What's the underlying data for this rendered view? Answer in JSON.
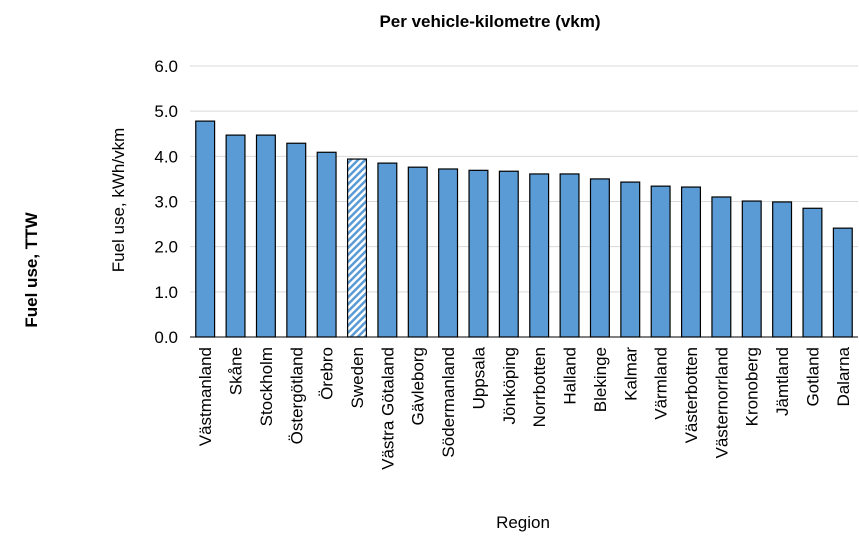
{
  "chart_data": {
    "type": "bar",
    "title": "Per vehicle-kilometre (vkm)",
    "side_label": "Fuel use, TTW",
    "y_label": "Fuel use, kWh/vkm",
    "x_label": "Region",
    "categories": [
      "Västmanland",
      "Skåne",
      "Stockholm",
      "Östergötland",
      "Örebro",
      "Sweden",
      "Västra Götaland",
      "Gävleborg",
      "Södermanland",
      "Uppsala",
      "Jönköping",
      "Norrbotten",
      "Halland",
      "Blekinge",
      "Kalmar",
      "Värmland",
      "Västerbotten",
      "Västernorrland",
      "Kronoberg",
      "Jämtland",
      "Gotland",
      "Dalarna"
    ],
    "values": [
      4.78,
      4.47,
      4.47,
      4.29,
      4.09,
      3.94,
      3.85,
      3.76,
      3.72,
      3.69,
      3.67,
      3.61,
      3.61,
      3.5,
      3.43,
      3.34,
      3.32,
      3.1,
      3.01,
      2.99,
      2.85,
      2.41
    ],
    "patterns": [
      "solid",
      "solid",
      "solid",
      "solid",
      "solid",
      "hatch",
      "solid",
      "solid",
      "solid",
      "solid",
      "solid",
      "solid",
      "solid",
      "solid",
      "solid",
      "solid",
      "solid",
      "solid",
      "solid",
      "solid",
      "solid",
      "solid"
    ],
    "color": "#5b9bd5",
    "ylim": [
      0,
      6
    ],
    "yticks": [
      {
        "value": 0,
        "label": "0.0"
      },
      {
        "value": 1,
        "label": "1.0"
      },
      {
        "value": 2,
        "label": "2.0"
      },
      {
        "value": 3,
        "label": "3.0"
      },
      {
        "value": 4,
        "label": "4.0"
      },
      {
        "value": 5,
        "label": "5.0"
      },
      {
        "value": 6,
        "label": "6.0"
      }
    ],
    "grid": true
  }
}
